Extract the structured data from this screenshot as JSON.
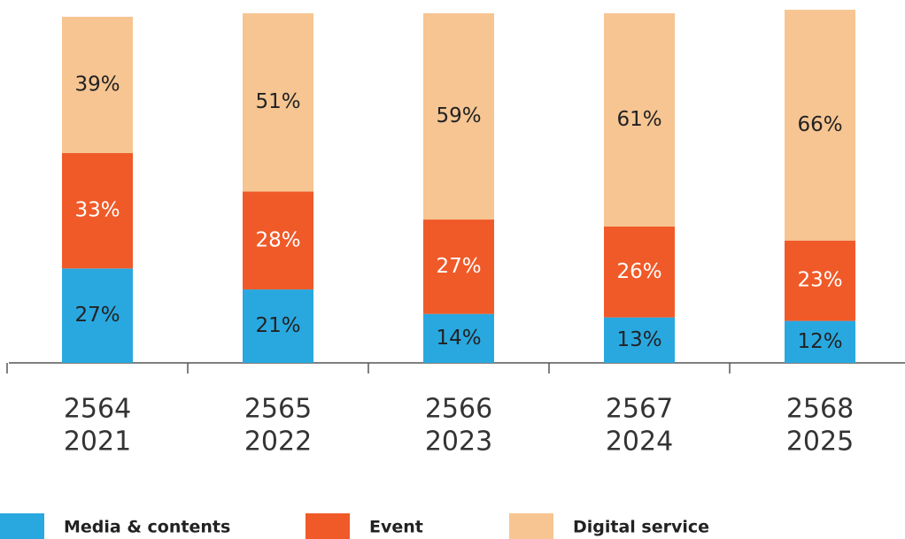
{
  "chart_data": {
    "type": "stacked_bar",
    "categories": [
      [
        "2564",
        "2021"
      ],
      [
        "2565",
        "2022"
      ],
      [
        "2566",
        "2023"
      ],
      [
        "2567",
        "2024"
      ],
      [
        "2568",
        "2025"
      ]
    ],
    "series": [
      {
        "name": "Media & contents",
        "color": "#29a8e0",
        "values": [
          27,
          21,
          14,
          13,
          12
        ],
        "value_labels": [
          "27%",
          "21%",
          "14%",
          "13%",
          "12%"
        ]
      },
      {
        "name": "Event",
        "color": "#f05a28",
        "values": [
          33,
          28,
          27,
          26,
          23
        ],
        "value_labels": [
          "33%",
          "28%",
          "27%",
          "26%",
          "23%"
        ]
      },
      {
        "name": "Digital service",
        "color": "#f6c592",
        "values": [
          39,
          51,
          59,
          61,
          66
        ],
        "value_labels": [
          "39%",
          "51%",
          "59%",
          "61%",
          "66%"
        ]
      }
    ],
    "ylim": [
      0,
      100
    ],
    "legend": "bottom"
  }
}
